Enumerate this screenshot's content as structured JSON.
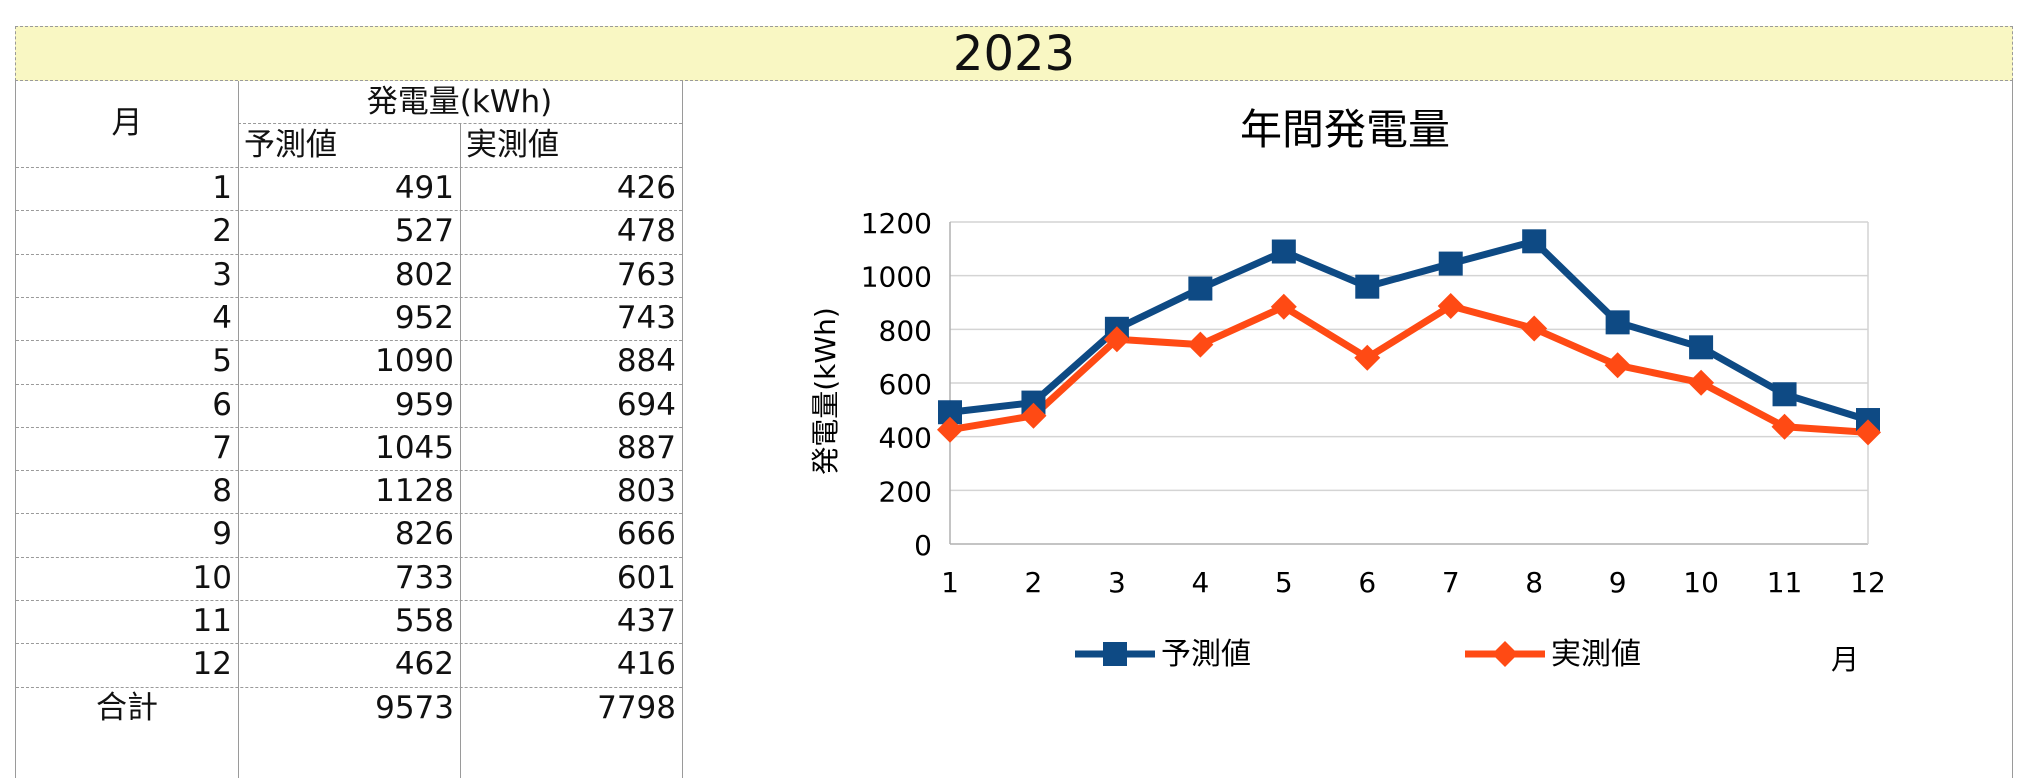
{
  "sheet": {
    "year": "2023",
    "table": {
      "month_header": "月",
      "group_header": "発電量(kWh)",
      "predicted_header": "予測値",
      "actual_header": "実測値",
      "rows": [
        {
          "month": "1",
          "predicted": "491",
          "actual": "426"
        },
        {
          "month": "2",
          "predicted": "527",
          "actual": "478"
        },
        {
          "month": "3",
          "predicted": "802",
          "actual": "763"
        },
        {
          "month": "4",
          "predicted": "952",
          "actual": "743"
        },
        {
          "month": "5",
          "predicted": "1090",
          "actual": "884"
        },
        {
          "month": "6",
          "predicted": "959",
          "actual": "694"
        },
        {
          "month": "7",
          "predicted": "1045",
          "actual": "887"
        },
        {
          "month": "8",
          "predicted": "1128",
          "actual": "803"
        },
        {
          "month": "9",
          "predicted": "826",
          "actual": "666"
        },
        {
          "month": "10",
          "predicted": "733",
          "actual": "601"
        },
        {
          "month": "11",
          "predicted": "558",
          "actual": "437"
        },
        {
          "month": "12",
          "predicted": "462",
          "actual": "416"
        }
      ],
      "total_label": "合計",
      "total_predicted": "9573",
      "total_actual": "7798"
    }
  },
  "chart_data": {
    "type": "line",
    "title": "年間発電量",
    "xlabel": "月",
    "ylabel": "発電量(kWh)",
    "categories": [
      "1",
      "2",
      "3",
      "4",
      "5",
      "6",
      "7",
      "8",
      "9",
      "10",
      "11",
      "12"
    ],
    "ylim": [
      0,
      1200
    ],
    "yticks": [
      0,
      200,
      400,
      600,
      800,
      1000,
      1200
    ],
    "grid": true,
    "legend_position": "bottom",
    "series": [
      {
        "name": "予測値",
        "marker": "square",
        "color": "#0e4a84",
        "values": [
          491,
          527,
          802,
          952,
          1090,
          959,
          1045,
          1128,
          826,
          733,
          558,
          462
        ]
      },
      {
        "name": "実測値",
        "marker": "diamond",
        "color": "#ff4a14",
        "values": [
          426,
          478,
          763,
          743,
          884,
          694,
          887,
          803,
          666,
          601,
          437,
          416
        ]
      }
    ]
  }
}
